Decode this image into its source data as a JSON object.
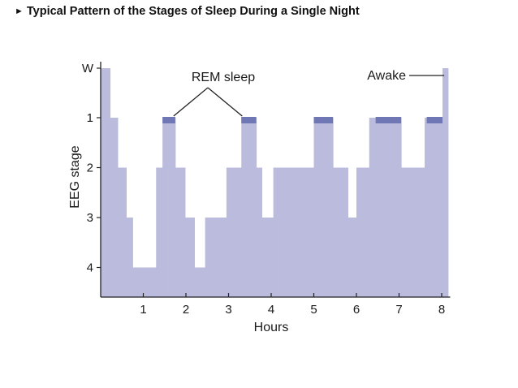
{
  "title": "Typical Pattern of the Stages of Sleep During a Single Night",
  "title_bullet": "►",
  "colors": {
    "fill": "#babbdd",
    "rem": "#6f78b4",
    "axis": "#222222"
  },
  "chart_data": {
    "type": "area",
    "title": "Typical Pattern of the Stages of Sleep During a Single Night",
    "xlabel": "Hours",
    "ylabel": "EEG stage",
    "xlim": [
      0,
      8.2
    ],
    "ylim_levels": [
      "W",
      "1",
      "2",
      "3",
      "4"
    ],
    "x_ticks": [
      1,
      2,
      3,
      4,
      5,
      6,
      7,
      8
    ],
    "x_tick_labels": [
      "1",
      "2",
      "3",
      "4",
      "5",
      "6",
      "7",
      "8"
    ],
    "y_tick_labels": [
      "W",
      "1",
      "2",
      "3",
      "4"
    ],
    "y_tick_values": [
      0,
      1,
      2,
      3,
      4
    ],
    "steps": [
      {
        "start": 0.0,
        "end": 0.22,
        "stage": 0
      },
      {
        "start": 0.22,
        "end": 0.4,
        "stage": 1
      },
      {
        "start": 0.4,
        "end": 0.6,
        "stage": 2
      },
      {
        "start": 0.6,
        "end": 0.75,
        "stage": 3
      },
      {
        "start": 0.75,
        "end": 1.3,
        "stage": 4
      },
      {
        "start": 1.3,
        "end": 1.45,
        "stage": 2
      },
      {
        "start": 1.45,
        "end": 1.75,
        "stage": 1
      },
      {
        "start": 1.75,
        "end": 1.98,
        "stage": 2
      },
      {
        "start": 1.98,
        "end": 2.2,
        "stage": 3
      },
      {
        "start": 2.2,
        "end": 2.45,
        "stage": 4
      },
      {
        "start": 2.45,
        "end": 2.95,
        "stage": 3
      },
      {
        "start": 2.95,
        "end": 3.3,
        "stage": 2
      },
      {
        "start": 3.3,
        "end": 3.65,
        "stage": 1
      },
      {
        "start": 3.65,
        "end": 3.78,
        "stage": 2
      },
      {
        "start": 3.78,
        "end": 4.05,
        "stage": 3
      },
      {
        "start": 4.05,
        "end": 5.0,
        "stage": 2
      },
      {
        "start": 5.0,
        "end": 5.45,
        "stage": 1
      },
      {
        "start": 5.45,
        "end": 5.8,
        "stage": 2
      },
      {
        "start": 5.8,
        "end": 6.0,
        "stage": 3
      },
      {
        "start": 6.0,
        "end": 6.3,
        "stage": 2
      },
      {
        "start": 6.3,
        "end": 6.55,
        "stage": 1
      },
      {
        "start": 6.55,
        "end": 7.05,
        "stage": 1
      },
      {
        "start": 7.05,
        "end": 7.6,
        "stage": 2
      },
      {
        "start": 7.6,
        "end": 8.02,
        "stage": 1
      },
      {
        "start": 8.02,
        "end": 8.15,
        "stage": 0
      }
    ],
    "rem_periods": [
      {
        "start": 1.45,
        "end": 1.75
      },
      {
        "start": 3.3,
        "end": 3.65
      },
      {
        "start": 5.0,
        "end": 5.45
      },
      {
        "start": 6.45,
        "end": 7.05
      },
      {
        "start": 7.65,
        "end": 8.02
      }
    ],
    "annotations": [
      {
        "text": "REM sleep",
        "x": 2.85,
        "stage": 0
      },
      {
        "text": "Awake",
        "x": 7.6,
        "stage": 0
      }
    ]
  }
}
